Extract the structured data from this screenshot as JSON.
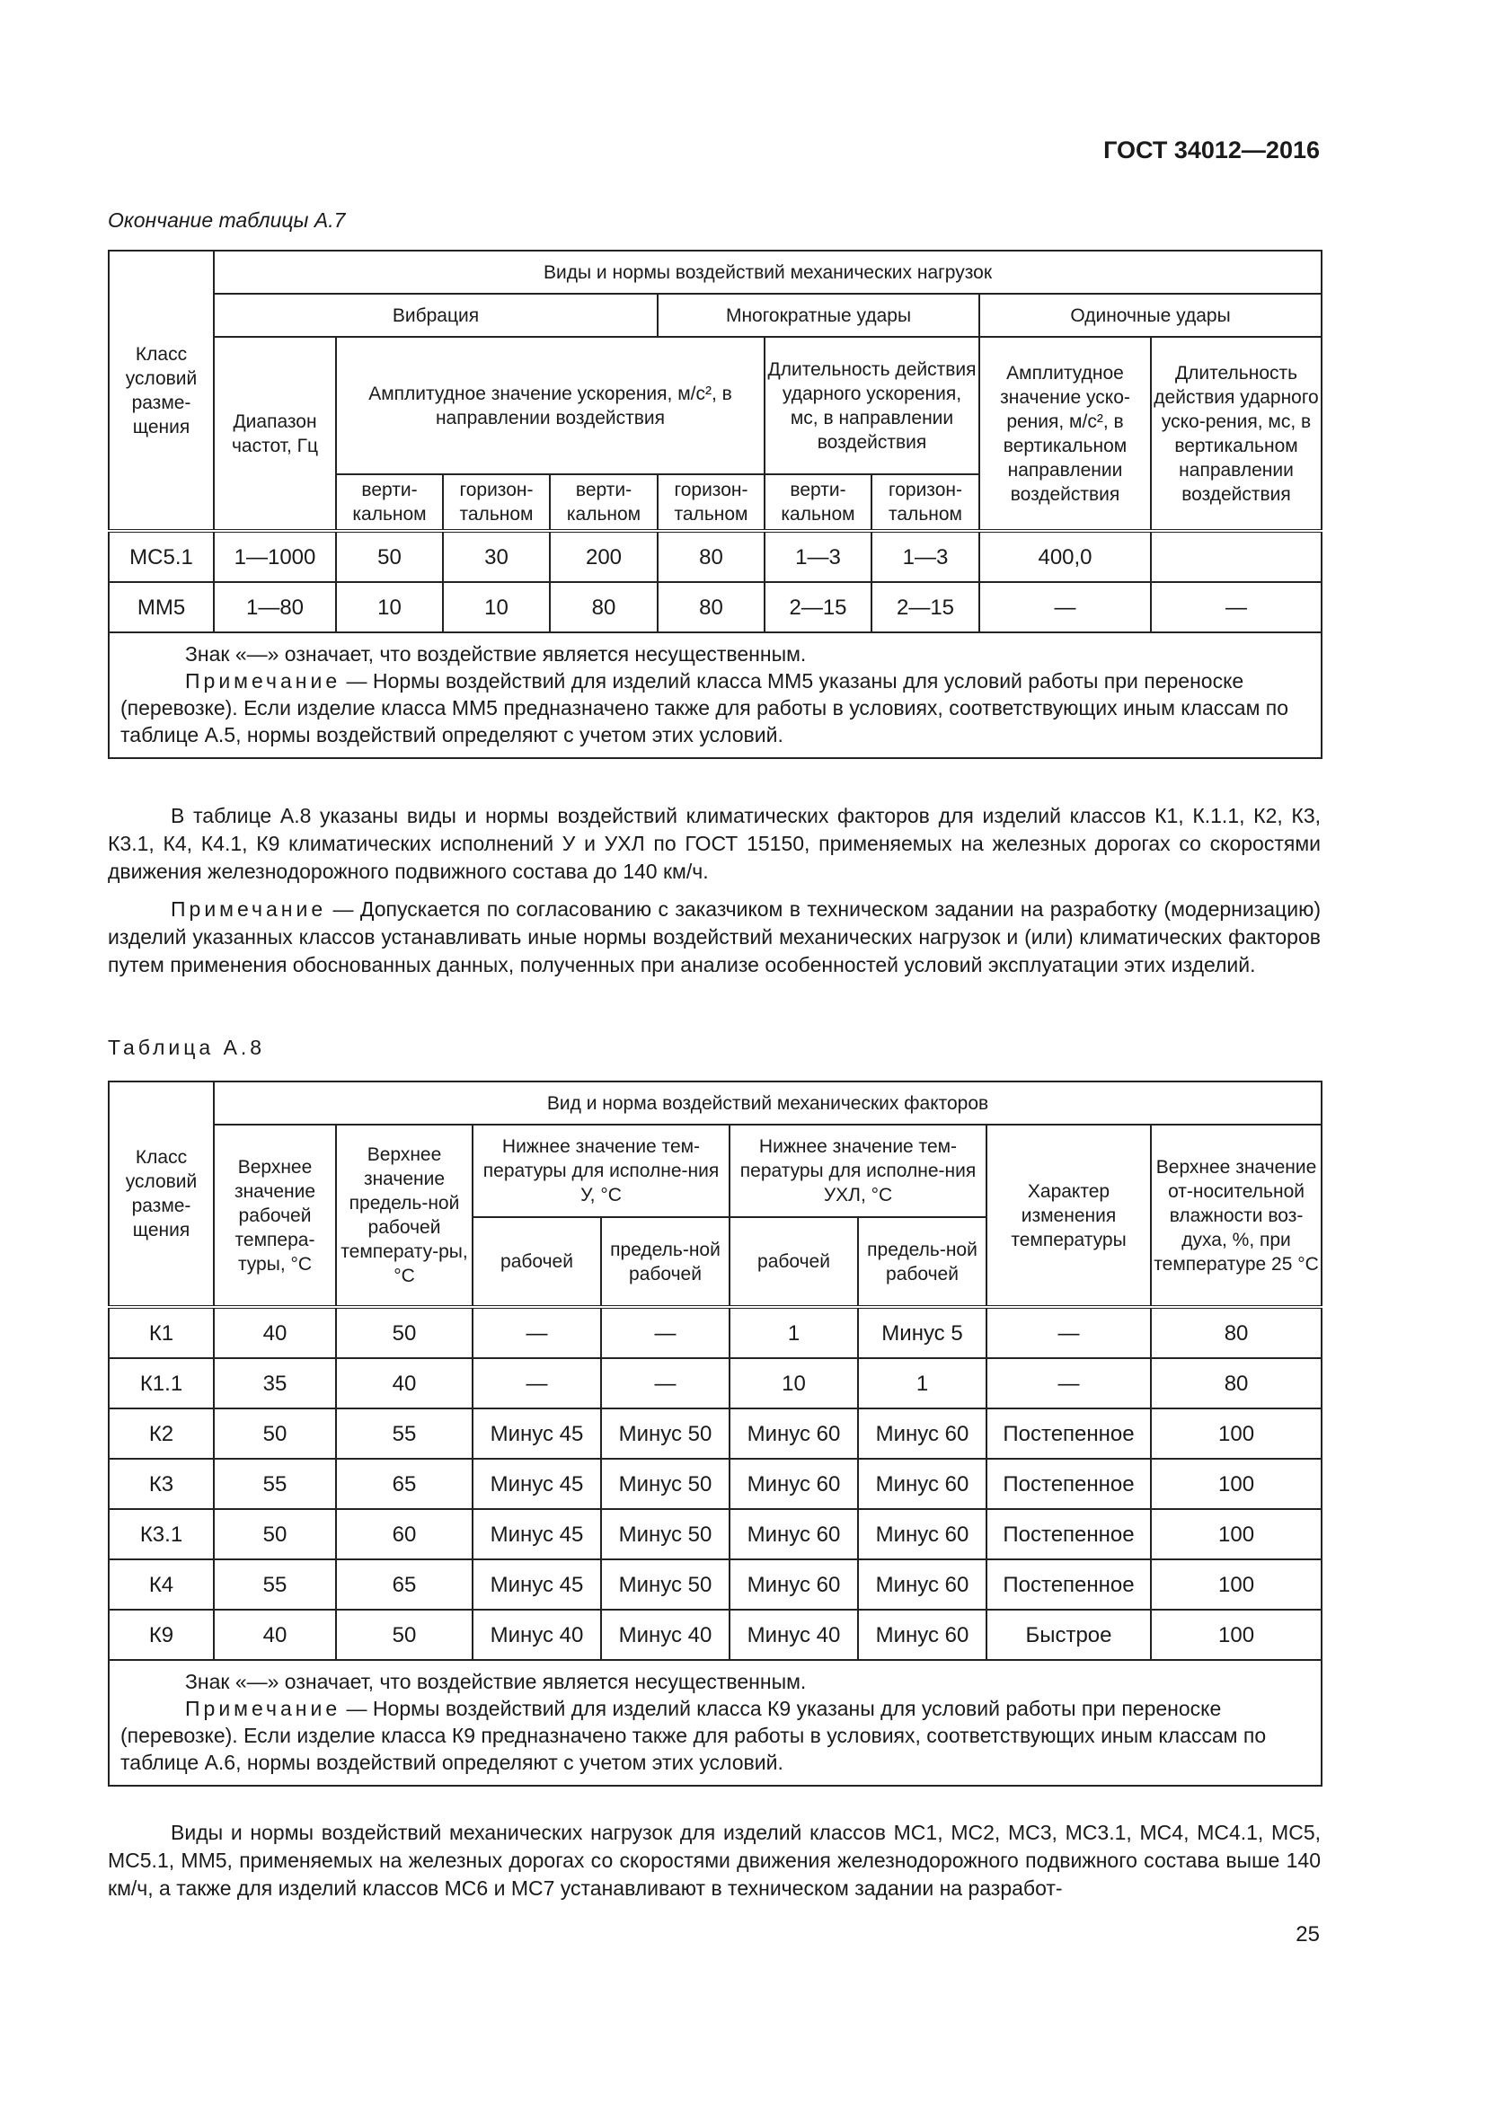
{
  "header": "ГОСТ 34012—2016",
  "t7": {
    "caption": "Окончание таблицы А.7",
    "h_top": "Виды и нормы воздействий механических нагрузок",
    "h_class": "Класс условий разме-щения",
    "h_vib": "Вибрация",
    "h_multi": "Многократные удары",
    "h_single": "Одиночные удары",
    "h_freq": "Диапазон частот, Гц",
    "h_amp": "Амплитудное значение ускорения, м/с², в направлении воздействия",
    "h_dur": "Длительность действия ударного ускорения, мс, в направлении воздействия",
    "h_samp": "Амплитудное значение уско-рения, м/с², в вертикальном направлении воздействия",
    "h_sdur": "Длительность действия ударного уско-рения, мс, в вертикальном направлении воздействия",
    "h_sub": [
      "верти-кальном",
      "горизон-тальном",
      "верти-кальном",
      "горизон-тальном",
      "верти-кальном",
      "горизон-тальном"
    ],
    "rows": [
      [
        "МС5.1",
        "1—1000",
        "50",
        "30",
        "200",
        "80",
        "1—3",
        "1—3",
        "400,0",
        ""
      ],
      [
        "ММ5",
        "1—80",
        "10",
        "10",
        "80",
        "80",
        "2—15",
        "2—15",
        "—",
        "—"
      ]
    ],
    "note1": "Знак «—» означает, что воздействие является несущественным.",
    "note_label": "Примечание",
    "note2": " — Нормы воздействий для изделий класса ММ5 указаны для условий работы при переноске (перевозке). Если изделие класса ММ5 предназначено также для работы в условиях, соответствующих иным классам по таблице А.5, нормы воздействий определяют с учетом этих условий."
  },
  "para1": "В таблице А.8 указаны виды и нормы воздействий климатических факторов для изделий классов К1, К.1.1, К2, К3, К3.1, К4, К4.1, К9 климатических исполнений У и УХЛ по ГОСТ 15150, применяемых на железных дорогах со скоростями движения железнодорожного подвижного состава до 140 км/ч.",
  "para2_label": "Примечание",
  "para2": " — Допускается по согласованию с заказчиком в техническом задании на разработку (модернизацию) изделий указанных классов устанавливать иные нормы воздействий механических нагрузок и (или) климатических факторов путем применения обоснованных данных, полученных при анализе особенностей условий эксплуатации этих изделий.",
  "t8": {
    "caption": "Таблица А.8",
    "h_top": "Вид и норма воздействий механических факторов",
    "h_class": "Класс условий разме-щения",
    "h_up": "Верхнее значение рабочей темпера-туры, °С",
    "h_upl": "Верхнее значение предель-ной рабочей температу-ры, °С",
    "h_lowU": "Нижнее значение тем-пературы для исполне-ния У, °С",
    "h_lowUHL": "Нижнее значение тем-пературы для исполне-ния УХЛ, °С",
    "h_char": "Характер изменения температуры",
    "h_hum": "Верхнее значение от-носительной влажности воз-духа, %, при температуре 25 °С",
    "h_sub": [
      "рабочей",
      "предель-ной рабочей",
      "рабочей",
      "предель-ной рабочей"
    ],
    "rows": [
      [
        "К1",
        "40",
        "50",
        "—",
        "—",
        "1",
        "Минус 5",
        "—",
        "80"
      ],
      [
        "К1.1",
        "35",
        "40",
        "—",
        "—",
        "10",
        "1",
        "—",
        "80"
      ],
      [
        "К2",
        "50",
        "55",
        "Минус 45",
        "Минус 50",
        "Минус 60",
        "Минус 60",
        "Постепенное",
        "100"
      ],
      [
        "К3",
        "55",
        "65",
        "Минус 45",
        "Минус 50",
        "Минус 60",
        "Минус 60",
        "Постепенное",
        "100"
      ],
      [
        "К3.1",
        "50",
        "60",
        "Минус 45",
        "Минус 50",
        "Минус 60",
        "Минус 60",
        "Постепенное",
        "100"
      ],
      [
        "К4",
        "55",
        "65",
        "Минус 45",
        "Минус 50",
        "Минус 60",
        "Минус 60",
        "Постепенное",
        "100"
      ],
      [
        "К9",
        "40",
        "50",
        "Минус 40",
        "Минус 40",
        "Минус 40",
        "Минус 60",
        "Быстрое",
        "100"
      ]
    ],
    "note1": "Знак «—» означает, что воздействие является несущественным.",
    "note_label": "Примечание",
    "note2": " — Нормы воздействий для изделий класса К9 указаны для условий работы при переноске (перевозке). Если изделие класса К9 предназначено также для работы в условиях, соответствующих иным классам по таблице А.6, нормы воздействий определяют с учетом этих условий."
  },
  "para3": "Виды и нормы воздействий механических нагрузок для изделий классов МС1, МС2, МС3, МС3.1, МС4, МС4.1, МС5, МС5.1, ММ5, применяемых на железных дорогах со скоростями движения железнодорожного подвижного состава выше 140 км/ч, а также для изделий классов МС6 и МС7 устанавливают в техническом задании на разработ-",
  "page_number": "25"
}
